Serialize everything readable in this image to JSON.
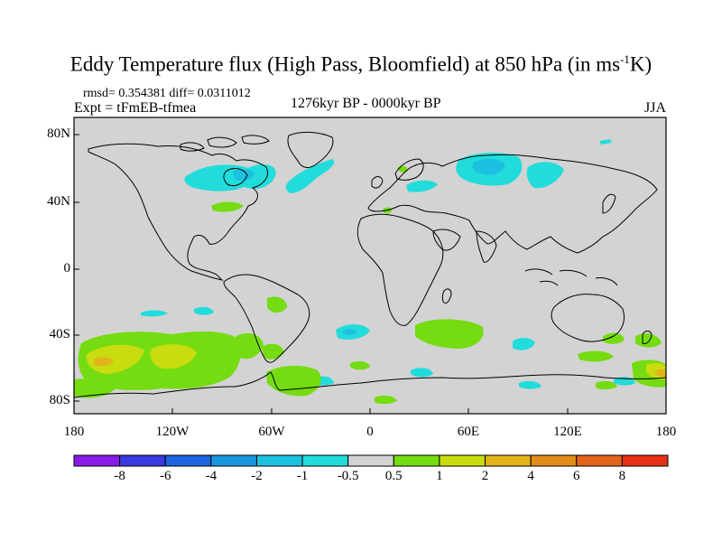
{
  "title": {
    "main": "Eddy Temperature flux (High Pass, Bloomfield) at 850 hPa (in ms",
    "sup": "-1",
    "tail": "K)"
  },
  "stats": "rmsd= 0.354381 diff= 0.0311012",
  "experiment": "Expt = tFmEB-tfmea",
  "period": "1276kyr BP - 0000kyr BP",
  "season": "JJA",
  "axes": {
    "lat_ticks": [
      "80N",
      "40N",
      "0",
      "40S",
      "80S"
    ],
    "lon_ticks": [
      "180",
      "120W",
      "60W",
      "0",
      "60E",
      "120E",
      "180"
    ]
  },
  "colorbar": {
    "labels": [
      "-8",
      "-6",
      "-4",
      "-2",
      "-1",
      "-0.5",
      "0.5",
      "1",
      "2",
      "4",
      "6",
      "8"
    ],
    "colors": [
      "#8a1ce8",
      "#3a3ae0",
      "#1e64e0",
      "#1996e0",
      "#1cc0e0",
      "#22dcdc",
      "#d3d3d3",
      "#74dc10",
      "#c8dc10",
      "#e2b41a",
      "#e28c1a",
      "#e2641a",
      "#e63218"
    ]
  },
  "map_colors": {
    "ocean_background": "#d3d3d3",
    "coastline": "#000000"
  }
}
